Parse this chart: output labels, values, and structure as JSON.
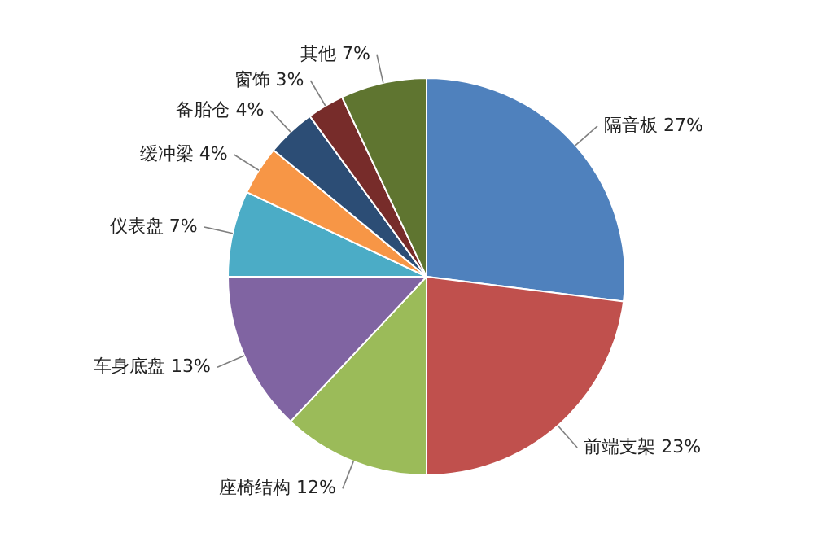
{
  "chart_data": {
    "type": "pie",
    "categories": [
      "隔音板",
      "前端支架",
      "座椅结构",
      "车身底盘",
      "仪表盘",
      "缓冲梁",
      "备胎仓",
      "窗饰",
      "其他"
    ],
    "values": [
      27,
      23,
      12,
      13,
      7,
      4,
      4,
      3,
      7
    ],
    "value_labels": [
      "27%",
      "23%",
      "12%",
      "13%",
      "7%",
      "4%",
      "4%",
      "3%",
      "7%"
    ],
    "colors": [
      "#4f81bd",
      "#c0504d",
      "#9bbb59",
      "#8064a2",
      "#4bacc6",
      "#f79646",
      "#2c4d75",
      "#772c2a",
      "#5f7530"
    ],
    "legend": false
  }
}
